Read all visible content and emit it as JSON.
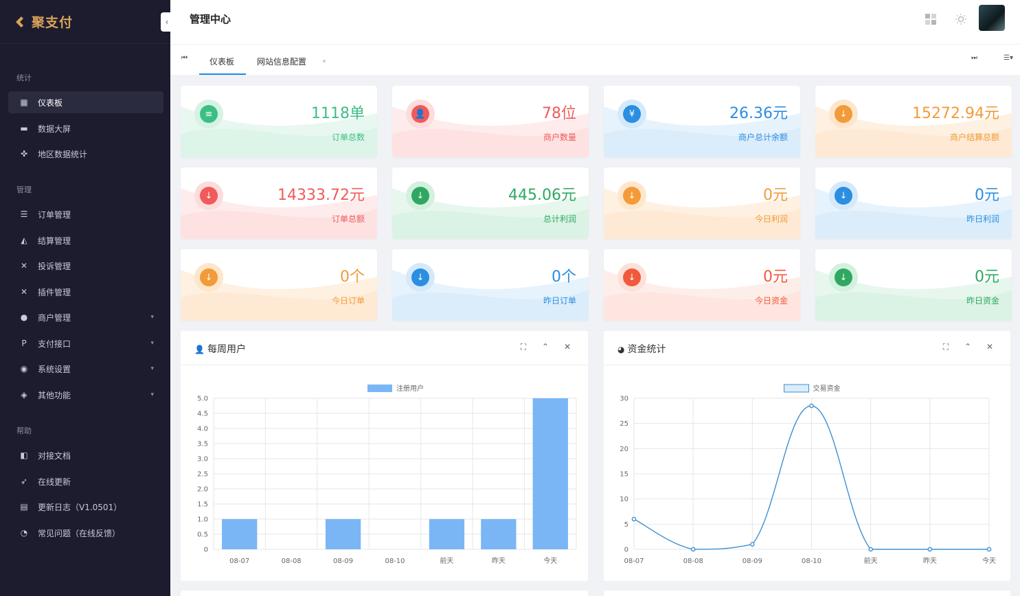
{
  "brand": {
    "name": "聚支付"
  },
  "sidebar": {
    "groups": [
      {
        "label": "统计",
        "items": [
          {
            "label": "仪表板",
            "icon": "dashboard-icon",
            "active": true
          },
          {
            "label": "数据大屏",
            "icon": "screen-icon"
          },
          {
            "label": "地区数据统计",
            "icon": "region-icon"
          }
        ]
      },
      {
        "label": "管理",
        "items": [
          {
            "label": "订单管理",
            "icon": "list-icon"
          },
          {
            "label": "结算管理",
            "icon": "settlement-icon"
          },
          {
            "label": "投诉管理",
            "icon": "complaint-icon"
          },
          {
            "label": "插件管理",
            "icon": "plugin-icon"
          },
          {
            "label": "商户管理",
            "icon": "user-icon",
            "expandable": true
          },
          {
            "label": "支付接口",
            "icon": "payment-icon",
            "expandable": true
          },
          {
            "label": "系统设置",
            "icon": "settings-icon",
            "expandable": true
          },
          {
            "label": "其他功能",
            "icon": "layers-icon",
            "expandable": true
          }
        ]
      },
      {
        "label": "帮助",
        "items": [
          {
            "label": "对接文档",
            "icon": "document-icon"
          },
          {
            "label": "在线更新",
            "icon": "rocket-icon"
          },
          {
            "label": "更新日志（V1.0501）",
            "icon": "changelog-icon"
          },
          {
            "label": "常见问题（在线反馈）",
            "icon": "faq-icon"
          }
        ]
      }
    ]
  },
  "header": {
    "title": "管理中心"
  },
  "tabs": {
    "items": [
      "仪表板",
      "网站信息配置"
    ],
    "active": 0
  },
  "stats": [
    {
      "value": "1118单",
      "label": "订单总数",
      "color": "#3cbf84",
      "light": "#d6f2e5",
      "icon": "≡"
    },
    {
      "value": "78位",
      "label": "商户数量",
      "color": "#f05a5a",
      "light": "#fddcdc",
      "icon": "👤"
    },
    {
      "value": "26.36元",
      "label": "商户总计余额",
      "color": "#2b8ee0",
      "light": "#d4e9fa",
      "icon": "¥"
    },
    {
      "value": "15272.94元",
      "label": "商户结算总额",
      "color": "#f29b38",
      "light": "#fde6cb",
      "icon": "↓"
    },
    {
      "value": "14333.72元",
      "label": "订单总额",
      "color": "#f05a5a",
      "light": "#fddcdc",
      "icon": "↓"
    },
    {
      "value": "445.06元",
      "label": "总计利润",
      "color": "#2fa862",
      "light": "#d4f0df",
      "icon": "↓"
    },
    {
      "value": "0元",
      "label": "今日利润",
      "color": "#f29b38",
      "light": "#fde6cb",
      "icon": "↓"
    },
    {
      "value": "0元",
      "label": "昨日利润",
      "color": "#2b8ee0",
      "light": "#d4e9fa",
      "icon": "↓"
    },
    {
      "value": "0个",
      "label": "今日订单",
      "color": "#f29b38",
      "light": "#fde6cb",
      "icon": "↓"
    },
    {
      "value": "0个",
      "label": "昨日订单",
      "color": "#2b8ee0",
      "light": "#d4e9fa",
      "icon": "↓"
    },
    {
      "value": "0元",
      "label": "今日资金",
      "color": "#f05a3c",
      "light": "#fde0d8",
      "icon": "↓"
    },
    {
      "value": "0元",
      "label": "昨日资金",
      "color": "#2fa862",
      "light": "#d4f0df",
      "icon": "↓"
    }
  ],
  "panels": {
    "weekly_users": {
      "title": "每周用户"
    },
    "funds": {
      "title": "资金统计"
    }
  },
  "chart_data": [
    {
      "type": "bar",
      "title": "每周用户",
      "categories": [
        "08-07",
        "08-08",
        "08-09",
        "08-10",
        "前天",
        "昨天",
        "今天"
      ],
      "series": [
        {
          "name": "注册用户",
          "values": [
            1,
            0,
            1,
            0,
            1,
            1,
            5
          ]
        }
      ],
      "ylim": [
        0,
        5
      ],
      "yticks": [
        "0",
        "0.5",
        "1.0",
        "1.5",
        "2.0",
        "2.5",
        "3.0",
        "3.5",
        "4.0",
        "4.5",
        "5.0"
      ],
      "grid": true,
      "legend": "top-center",
      "color": "#7ab6f5"
    },
    {
      "type": "line",
      "title": "资金统计",
      "categories": [
        "08-07",
        "08-08",
        "08-09",
        "08-10",
        "前天",
        "昨天",
        "今天"
      ],
      "series": [
        {
          "name": "交易资金",
          "values": [
            6,
            0,
            1,
            28.5,
            0,
            0,
            0
          ]
        }
      ],
      "ylim": [
        0,
        30
      ],
      "yticks": [
        "0",
        "5",
        "10",
        "15",
        "20",
        "25",
        "30"
      ],
      "grid": true,
      "legend": "top-center",
      "color": "#3d8fd1"
    }
  ]
}
